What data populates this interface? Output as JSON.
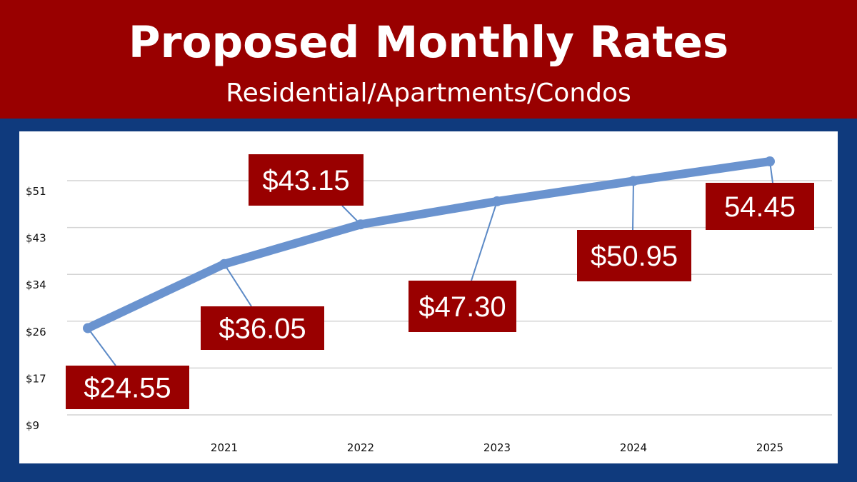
{
  "header": {
    "title": "Proposed Monthly Rates",
    "subtitle": "Residential/Apartments/Condos"
  },
  "colors": {
    "banner": "#990000",
    "frame": "#0f3a7d",
    "line": "#6a93cf",
    "label_box": "#990000",
    "leader": "#5b89c6",
    "grid": "#d4d4d4"
  },
  "chart_data": {
    "type": "line",
    "title": "",
    "xlabel": "",
    "ylabel": "",
    "categories": [
      "",
      "2021",
      "2022",
      "2023",
      "2024",
      "2025"
    ],
    "y_ticks": [
      "$9",
      "$17",
      "$26",
      "$34",
      "$43",
      "$51"
    ],
    "ylim": [
      9,
      51
    ],
    "grid": true,
    "legend": "none",
    "series": [
      {
        "values": [
          24.55,
          36.05,
          43.15,
          47.3,
          50.95,
          54.45
        ]
      }
    ],
    "data_labels": [
      "$24.55",
      "$36.05",
      "$43.15",
      "$47.30",
      "$50.95",
      "54.45"
    ]
  }
}
